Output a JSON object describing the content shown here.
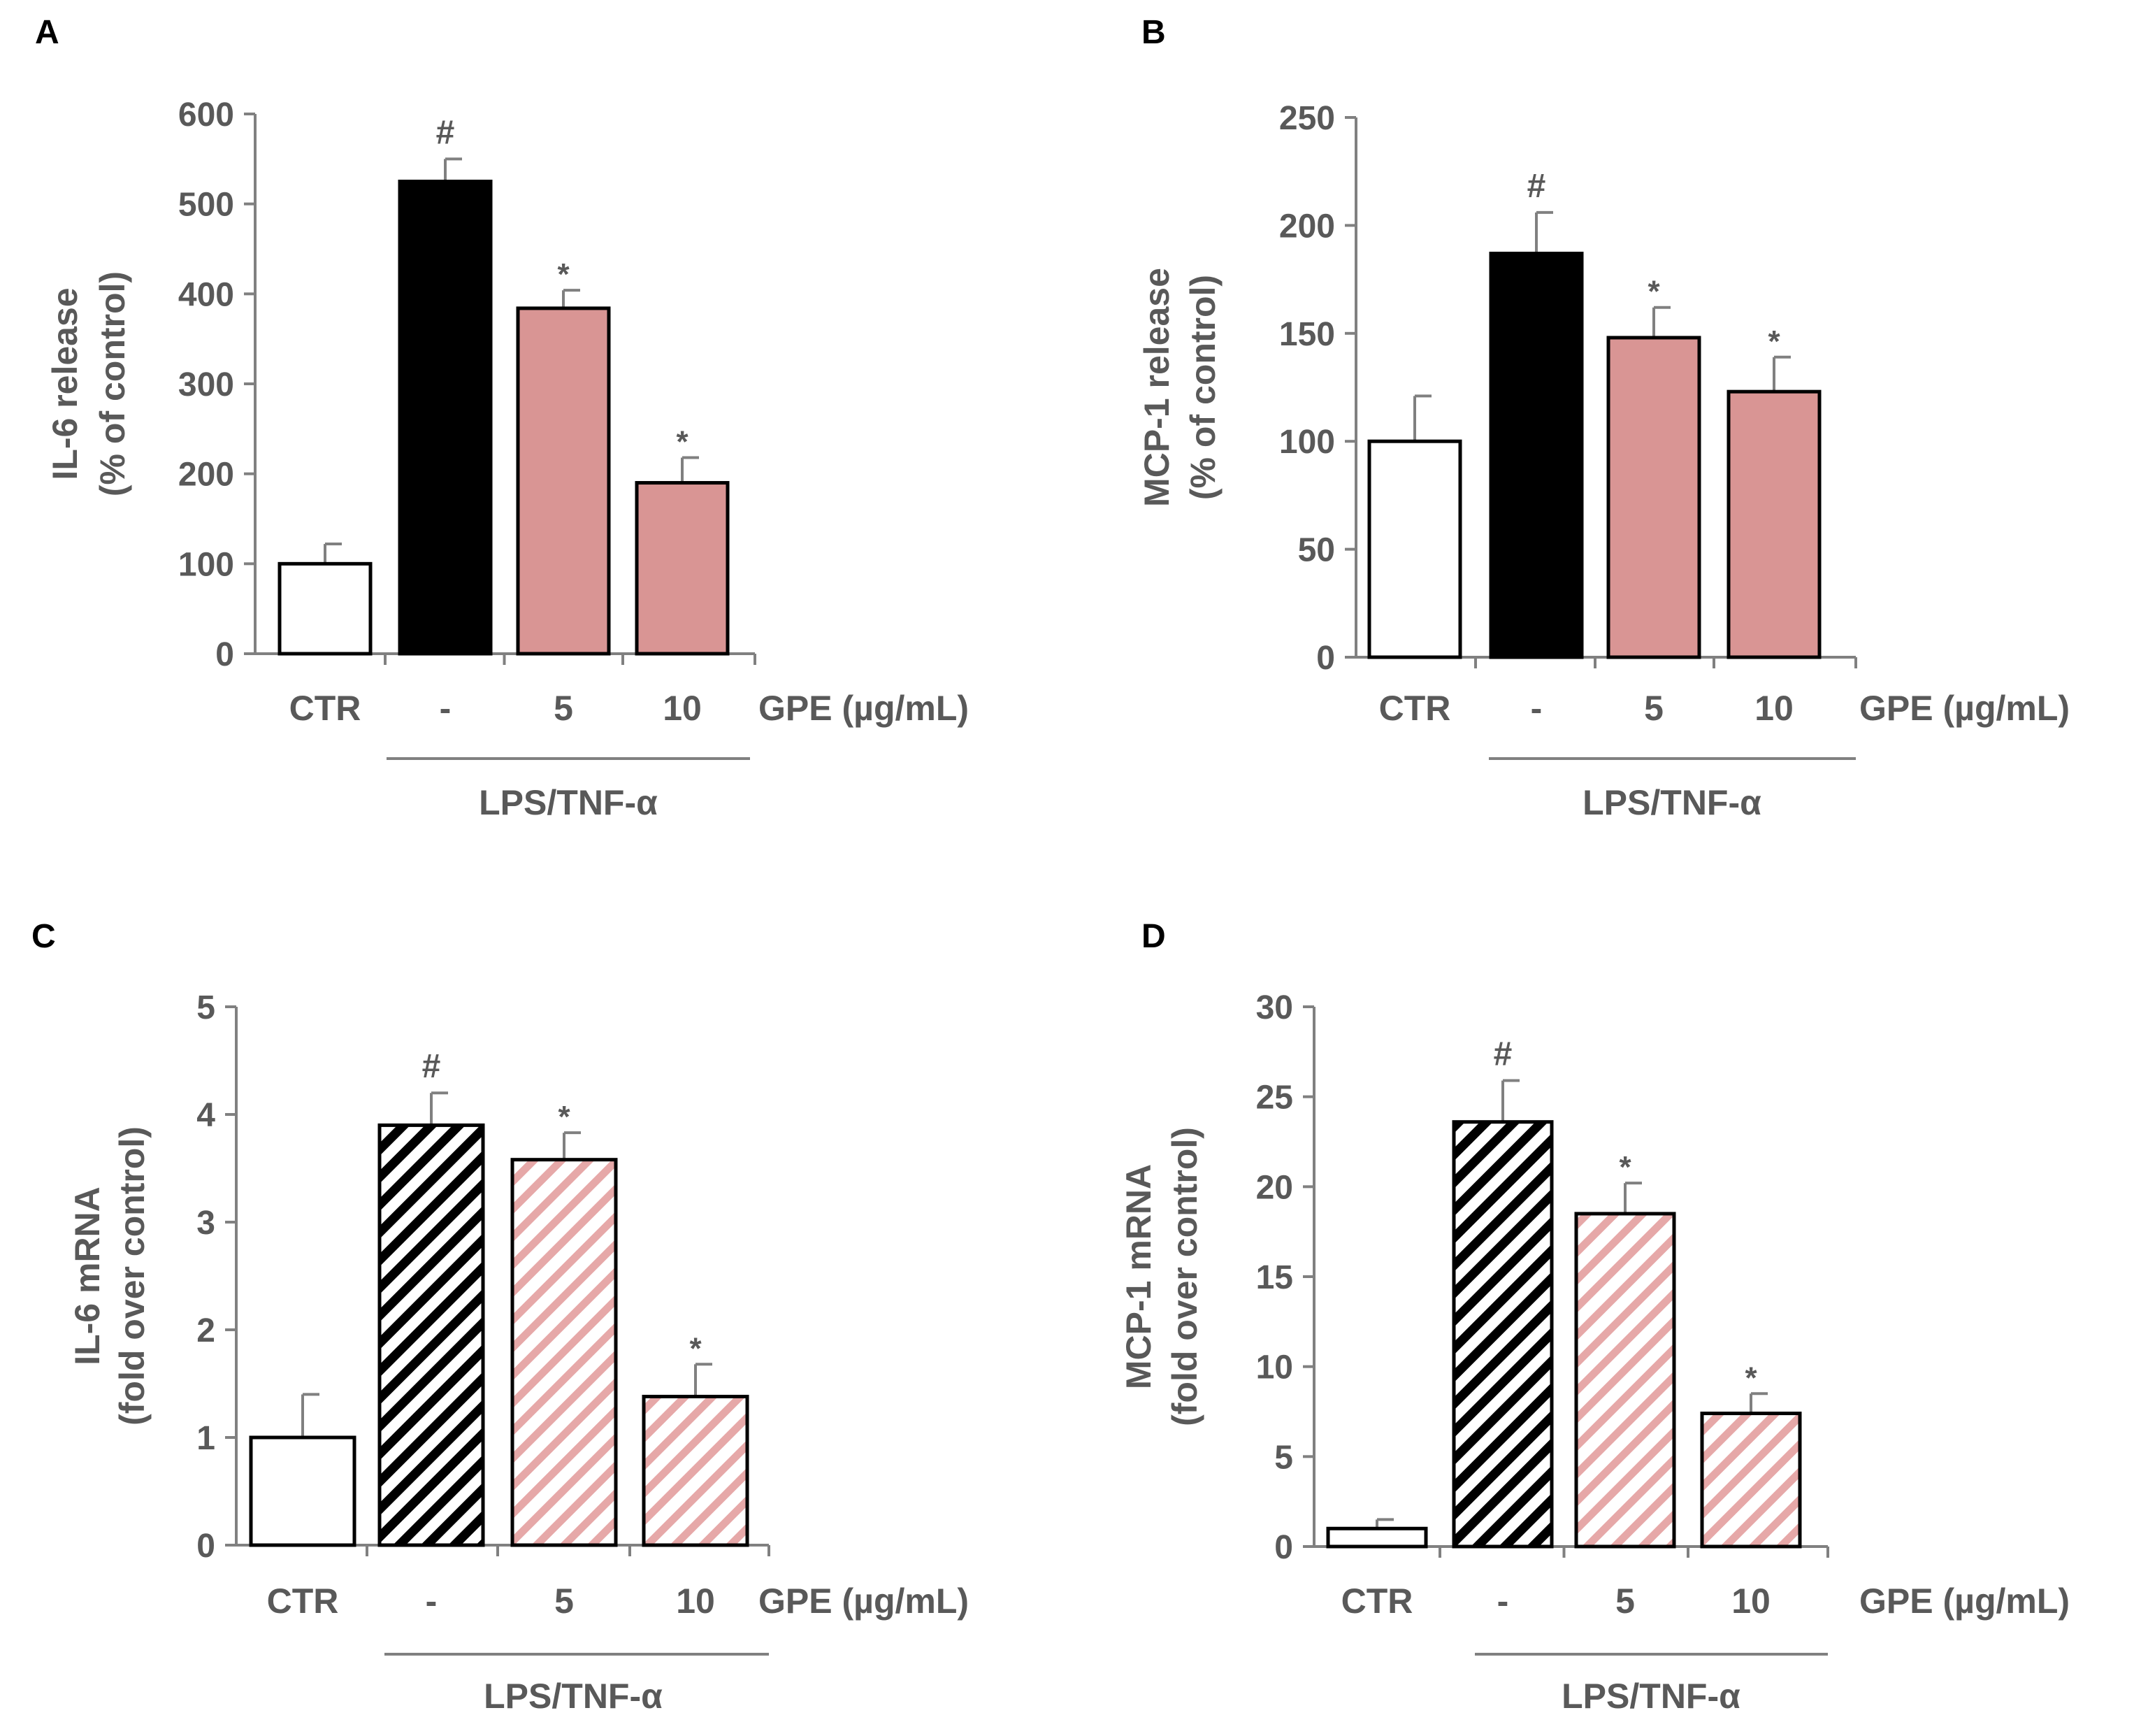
{
  "chart_data": [
    {
      "panel": "A",
      "type": "bar",
      "ylabel": [
        "IL-6 release",
        "(% of control)"
      ],
      "categories": [
        "CTR",
        "-",
        "5",
        "10"
      ],
      "values": [
        100,
        525,
        384,
        190
      ],
      "errors": [
        22,
        25,
        20,
        28
      ],
      "markers": [
        "",
        "#",
        "*",
        "*"
      ],
      "ylim": [
        0,
        600
      ],
      "yticks": [
        0,
        100,
        200,
        300,
        400,
        500,
        600
      ],
      "dose_label": "GPE (µg/mL)",
      "group_label": "LPS/TNF-α",
      "bar_styles": [
        "white",
        "black",
        "pink",
        "pink"
      ]
    },
    {
      "panel": "B",
      "type": "bar",
      "ylabel": [
        "MCP-1 release",
        "(% of control)"
      ],
      "categories": [
        "CTR",
        "-",
        "5",
        "10"
      ],
      "values": [
        100,
        187,
        148,
        123
      ],
      "errors": [
        21,
        19,
        14,
        16
      ],
      "markers": [
        "",
        "#",
        "*",
        "*"
      ],
      "ylim": [
        0,
        250
      ],
      "yticks": [
        0,
        50,
        100,
        150,
        200,
        250
      ],
      "dose_label": "GPE (µg/mL)",
      "group_label": "LPS/TNF-α",
      "bar_styles": [
        "white",
        "black",
        "pink",
        "pink"
      ]
    },
    {
      "panel": "C",
      "type": "bar",
      "ylabel": [
        "IL-6 mRNA",
        "(fold over control)"
      ],
      "categories": [
        "CTR",
        "-",
        "5",
        "10"
      ],
      "values": [
        1.0,
        3.9,
        3.58,
        1.38
      ],
      "errors": [
        0.4,
        0.3,
        0.25,
        0.3
      ],
      "markers": [
        "",
        "#",
        "*",
        "*"
      ],
      "ylim": [
        0,
        5
      ],
      "yticks": [
        0,
        1,
        2,
        3,
        4,
        5
      ],
      "dose_label": "GPE (µg/mL)",
      "group_label": "LPS/TNF-α",
      "bar_styles": [
        "white",
        "black-hatch",
        "pink-hatch",
        "pink-hatch"
      ]
    },
    {
      "panel": "D",
      "type": "bar",
      "ylabel": [
        "MCP-1 mRNA",
        "(fold over control)"
      ],
      "categories": [
        "CTR",
        "-",
        "5",
        "10"
      ],
      "values": [
        1.0,
        23.6,
        18.5,
        7.4
      ],
      "errors": [
        0.5,
        2.3,
        1.7,
        1.1
      ],
      "markers": [
        "",
        "#",
        "*",
        "*"
      ],
      "ylim": [
        0,
        30
      ],
      "yticks": [
        0,
        5,
        10,
        15,
        20,
        25,
        30
      ],
      "dose_label": "GPE (µg/mL)",
      "group_label": "LPS/TNF-α",
      "bar_styles": [
        "white",
        "black-hatch",
        "pink-hatch",
        "pink-hatch"
      ]
    }
  ],
  "colors": {
    "axis": "#808080",
    "text": "#595959",
    "black": "#000000",
    "pink": "#d99594",
    "pink_hatch": "#e6a8a8",
    "outline": "#000000",
    "white": "#ffffff"
  }
}
